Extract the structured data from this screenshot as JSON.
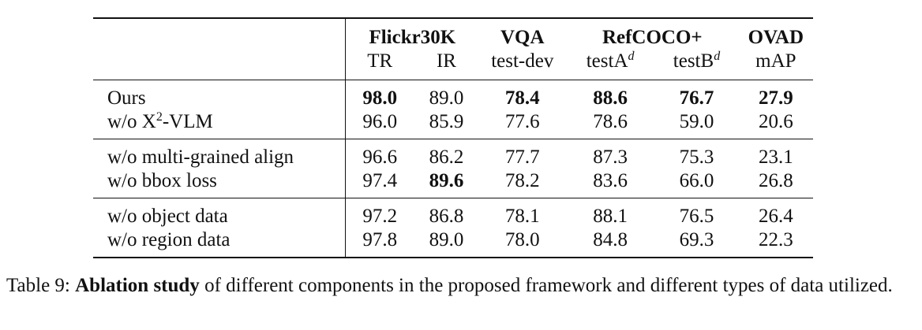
{
  "table": {
    "groups": {
      "flickr": "Flickr30K",
      "vqa": "VQA",
      "refcoco": "RefCOCO+",
      "ovad": "OVAD"
    },
    "subheads": {
      "tr": "TR",
      "ir": "IR",
      "vqa": "test-dev",
      "testa": "testA",
      "testb": "testB",
      "sup_d": "d",
      "ovad": "mAP"
    },
    "rows": [
      {
        "method": "Ours",
        "tr": "98.0",
        "ir": "89.0",
        "vqa": "78.4",
        "testa": "88.6",
        "testb": "76.7",
        "ovad": "27.9"
      },
      {
        "method_pre": "w/o X",
        "method_sup": "2",
        "method_post": "-VLM",
        "tr": "96.0",
        "ir": "85.9",
        "vqa": "77.6",
        "testa": "78.6",
        "testb": "59.0",
        "ovad": "20.6"
      },
      {
        "method": "w/o multi-grained align",
        "tr": "96.6",
        "ir": "86.2",
        "vqa": "77.7",
        "testa": "87.3",
        "testb": "75.3",
        "ovad": "23.1"
      },
      {
        "method": "w/o bbox loss",
        "tr": "97.4",
        "ir": "89.6",
        "vqa": "78.2",
        "testa": "83.6",
        "testb": "66.0",
        "ovad": "26.8"
      },
      {
        "method": "w/o object data",
        "tr": "97.2",
        "ir": "86.8",
        "vqa": "78.1",
        "testa": "88.1",
        "testb": "76.5",
        "ovad": "26.4"
      },
      {
        "method": "w/o region data",
        "tr": "97.8",
        "ir": "89.0",
        "vqa": "78.0",
        "testa": "84.8",
        "testb": "69.3",
        "ovad": "22.3"
      }
    ]
  },
  "caption": {
    "label": "Table 9:",
    "bold": "Ablation study",
    "rest": " of different components in the proposed framework and different types of data utilized."
  }
}
